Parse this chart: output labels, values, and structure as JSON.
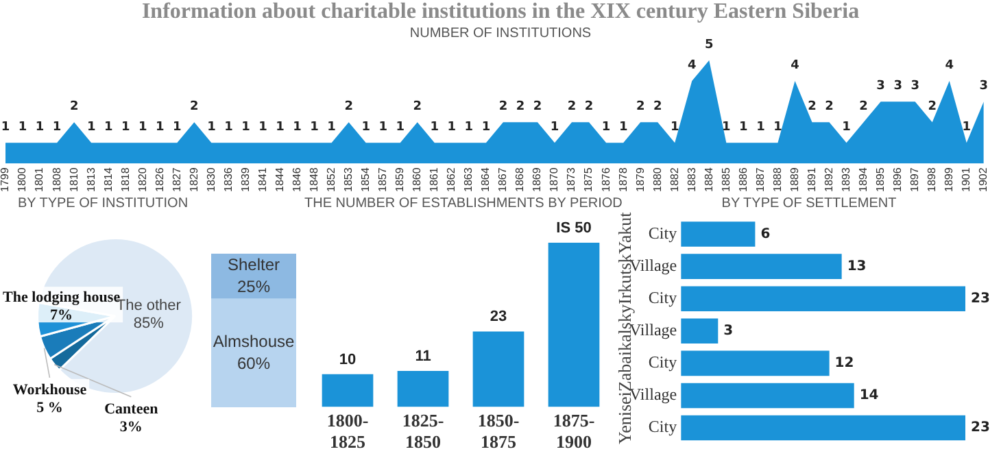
{
  "chart_data": [
    {
      "type": "area",
      "title": "Information about charitable institutions in the XIX century Eastern Siberia",
      "subtitle": "NUMBER OF INSTITUTIONS",
      "categories": [
        "1799",
        "1800",
        "1801",
        "1808",
        "1810",
        "1813",
        "1814",
        "1818",
        "1820",
        "1826",
        "1827",
        "1829",
        "1830",
        "1836",
        "1839",
        "1841",
        "1844",
        "1846",
        "1848",
        "1852",
        "1853",
        "1854",
        "1857",
        "1859",
        "1860",
        "1861",
        "1862",
        "1863",
        "1864",
        "1867",
        "1868",
        "1869",
        "1870",
        "1873",
        "1875",
        "1876",
        "1878",
        "1879",
        "1880",
        "1882",
        "1883",
        "1884",
        "1885",
        "1886",
        "1887",
        "1888",
        "1889",
        "1891",
        "1892",
        "1893",
        "1894",
        "1895",
        "1896",
        "1897",
        "1898",
        "1899",
        "1901",
        "1902"
      ],
      "values": [
        1,
        1,
        1,
        1,
        2,
        1,
        1,
        1,
        1,
        1,
        1,
        2,
        1,
        1,
        1,
        1,
        1,
        1,
        1,
        1,
        2,
        1,
        1,
        1,
        2,
        1,
        1,
        1,
        1,
        2,
        2,
        2,
        1,
        2,
        2,
        1,
        1,
        2,
        2,
        1,
        4,
        5,
        1,
        1,
        1,
        1,
        4,
        2,
        2,
        1,
        2,
        3,
        3,
        3,
        2,
        4,
        1,
        3
      ],
      "color": "#1b93d8",
      "tick_labels": "x",
      "data_labels": true
    },
    {
      "type": "pie",
      "title": "BY TYPE OF INSTITUTION",
      "categories": [
        "Canteen",
        "Workhouse",
        "The lodging house",
        "The other"
      ],
      "values": [
        3,
        5,
        7,
        85
      ],
      "colors": [
        "#156a9c",
        "#1a7cba",
        "#1e91d7",
        "#dde9f5"
      ],
      "value_labels": [
        "3%",
        "5 %",
        "7%",
        "85%"
      ]
    },
    {
      "type": "bar",
      "stacked": true,
      "categories": [
        null
      ],
      "ylim": [
        0,
        85
      ],
      "tick_labels": false,
      "series": [
        {
          "name": "Almshouse",
          "color": "#b7d4ef",
          "values": [
            60
          ],
          "value_labels": [
            "60%"
          ]
        },
        {
          "name": "Shelter",
          "color": "#8db9e2",
          "values": [
            25
          ],
          "value_labels": [
            "25%"
          ]
        }
      ]
    },
    {
      "type": "bar",
      "title": "THE NUMBER OF ESTABLISHMENTS BY PERIOD",
      "categories": [
        "1800-1825",
        "1825-1850",
        "1850-1875",
        "1875-1900"
      ],
      "values": [
        10,
        11,
        23,
        50
      ],
      "value_labels": [
        "10",
        "11",
        "23",
        "IS 50"
      ],
      "color": "#1b93d8",
      "ylim": [
        0,
        50
      ],
      "tick_labels": "x"
    },
    {
      "type": "bar",
      "orientation": "horizontal",
      "title": "BY TYPE OF SETTLEMENT",
      "categories": [
        "City",
        "Village",
        "City",
        "Village",
        "City",
        "Village",
        "City"
      ],
      "values": [
        6,
        13,
        23,
        3,
        12,
        14,
        23
      ],
      "color": "#1b93d8",
      "xlim": [
        0,
        23
      ],
      "tick_labels": "y",
      "data_labels": true,
      "annotations": [
        "Yakut",
        "Irkutsk",
        "Zabaikalsky",
        "Yenisei"
      ]
    }
  ]
}
